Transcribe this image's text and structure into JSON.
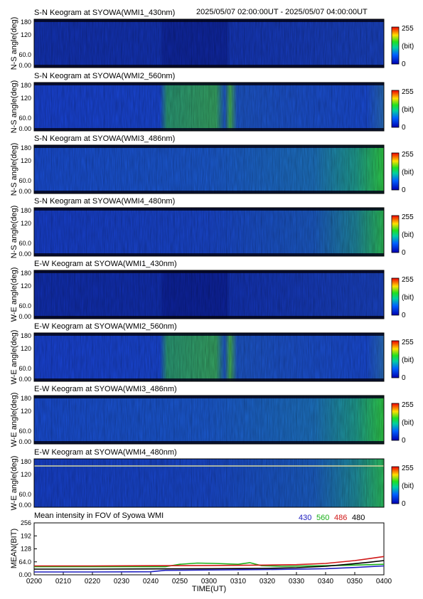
{
  "header": {
    "time_range": "2025/05/07 02:00:00UT - 2025/05/07 04:00:00UT"
  },
  "chart_data": [
    {
      "type": "heatmap",
      "title": "S-N Keogram at SYOWA(WMI1_430nm)",
      "ylabel": "N-S angle(deg)",
      "yticks": [
        "180",
        "120",
        "60.0",
        "0.00"
      ],
      "ylim": [
        0,
        180
      ],
      "colorbar": {
        "max": "255",
        "unit": "(bit)",
        "min": "0"
      },
      "style": "w430sn"
    },
    {
      "type": "heatmap",
      "title": "S-N Keogram at SYOWA(WMI2_560nm)",
      "ylabel": "N-S angle(deg)",
      "yticks": [
        "180",
        "120",
        "60.0",
        "0.00"
      ],
      "ylim": [
        0,
        180
      ],
      "colorbar": {
        "max": "255",
        "unit": "(bit)",
        "min": "0"
      },
      "style": "w560"
    },
    {
      "type": "heatmap",
      "title": "S-N Keogram at SYOWA(WMI3_486nm)",
      "ylabel": "N-S angle(deg)",
      "yticks": [
        "180",
        "120",
        "60.0",
        "0.00"
      ],
      "ylim": [
        0,
        180
      ],
      "colorbar": {
        "max": "255",
        "unit": "(bit)",
        "min": "0"
      },
      "style": "w486"
    },
    {
      "type": "heatmap",
      "title": "S-N Keogram at SYOWA(WMI4_480nm)",
      "ylabel": "N-S angle(deg)",
      "yticks": [
        "180",
        "120",
        "60.0",
        "0.00"
      ],
      "ylim": [
        0,
        180
      ],
      "colorbar": {
        "max": "255",
        "unit": "(bit)",
        "min": "0"
      },
      "style": "w480"
    },
    {
      "type": "heatmap",
      "title": "E-W Keogram at SYOWA(WMI1_430nm)",
      "ylabel": "W-E angle(deg)",
      "yticks": [
        "180",
        "120",
        "60.0",
        "0.00"
      ],
      "ylim": [
        0,
        180
      ],
      "colorbar": {
        "max": "255",
        "unit": "(bit)",
        "min": "0"
      },
      "style": "w430ew"
    },
    {
      "type": "heatmap",
      "title": "E-W Keogram at SYOWA(WMI2_560nm)",
      "ylabel": "W-E angle(deg)",
      "yticks": [
        "180",
        "120",
        "60.0",
        "0.00"
      ],
      "ylim": [
        0,
        180
      ],
      "colorbar": {
        "max": "255",
        "unit": "(bit)",
        "min": "0"
      },
      "style": "w560"
    },
    {
      "type": "heatmap",
      "title": "E-W Keogram at SYOWA(WMI3_486nm)",
      "ylabel": "W-E angle(deg)",
      "yticks": [
        "180",
        "120",
        "60.0",
        "0.00"
      ],
      "ylim": [
        0,
        180
      ],
      "colorbar": {
        "max": "255",
        "unit": "(bit)",
        "min": "0"
      },
      "style": "w486"
    },
    {
      "type": "heatmap",
      "title": "E-W Keogram at SYOWA(WMI4_480nm)",
      "ylabel": "W-E angle(deg)",
      "yticks": [
        "180",
        "120",
        "60.0",
        "0.00"
      ],
      "ylim": [
        0,
        180
      ],
      "colorbar": {
        "max": "255",
        "unit": "(bit)",
        "min": "0"
      },
      "style": "w480line"
    },
    {
      "type": "line",
      "title": "Mean intensity in FOV of Syowa WMI",
      "ylabel": "MEAN(BIT)",
      "xlabel": "TIME(UT)",
      "x_ticks": [
        "0200",
        "0210",
        "0220",
        "0230",
        "0240",
        "0250",
        "0300",
        "0310",
        "0320",
        "0330",
        "0340",
        "0350",
        "0400"
      ],
      "y_ticks": [
        "0.00",
        "64.0",
        "128",
        "192",
        "256"
      ],
      "ylim": [
        0,
        256
      ],
      "xlim_minutes": [
        0,
        120
      ],
      "legend": [
        {
          "label": "430",
          "color": "#2020c0"
        },
        {
          "label": "560",
          "color": "#18b018"
        },
        {
          "label": "486",
          "color": "#d01818"
        },
        {
          "label": "480",
          "color": "#000000"
        }
      ],
      "series": [
        {
          "name": "560",
          "color": "#18b018",
          "x": [
            0,
            45,
            50,
            56,
            62,
            70,
            74,
            78,
            85,
            100,
            110,
            120
          ],
          "y": [
            40,
            40,
            52,
            58,
            56,
            52,
            60,
            45,
            42,
            45,
            48,
            52
          ]
        },
        {
          "name": "486",
          "color": "#d01818",
          "x": [
            0,
            20,
            40,
            60,
            80,
            90,
            100,
            110,
            115,
            120
          ],
          "y": [
            44,
            44,
            45,
            46,
            48,
            50,
            56,
            70,
            80,
            90
          ]
        },
        {
          "name": "480",
          "color": "#000000",
          "x": [
            0,
            20,
            40,
            60,
            80,
            90,
            100,
            110,
            115,
            120
          ],
          "y": [
            28,
            28,
            29,
            30,
            32,
            35,
            42,
            55,
            62,
            70
          ]
        },
        {
          "name": "430",
          "color": "#2020c0",
          "x": [
            0,
            20,
            40,
            45,
            60,
            80,
            100,
            110,
            115,
            120
          ],
          "y": [
            14,
            14,
            15,
            22,
            24,
            26,
            30,
            36,
            40,
            44
          ]
        }
      ]
    }
  ]
}
